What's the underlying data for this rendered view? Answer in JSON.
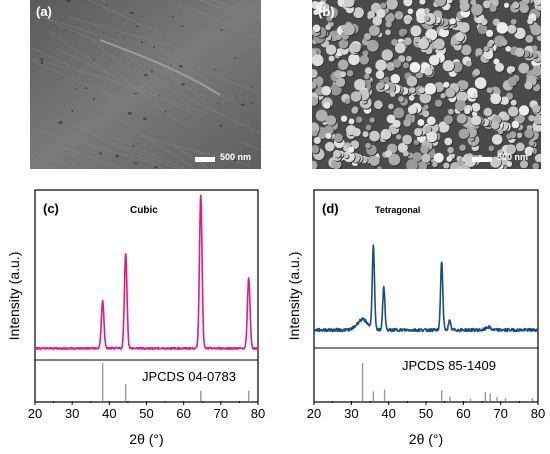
{
  "panels": {
    "a": {
      "label": "(a)",
      "scale_bar": "500 nm"
    },
    "b": {
      "label": "(b)",
      "scale_bar": "500 nm"
    },
    "c": {
      "label": "(c)",
      "phase": "Cubic",
      "reference": "JPCDS 04-0783"
    },
    "d": {
      "label": "(d)",
      "phase": "Tetragonal",
      "reference": "JPCDS 85-1409"
    }
  },
  "colors": {
    "cubic_line": "#e6197f",
    "tetragonal_line": "#1a4e7c",
    "reference_bars": "#9a9a9a"
  },
  "chart_data": [
    {
      "type": "line",
      "title": "",
      "xlabel": "2θ (°)",
      "ylabel": "Intensity (a.u.)",
      "xlim": [
        20,
        80
      ],
      "x_ticks": [
        20,
        30,
        40,
        50,
        60,
        70,
        80
      ],
      "y_ticks": "none",
      "baseline": 0.05,
      "peaks": [
        {
          "x": 38.2,
          "height": 0.31,
          "width": 0.35
        },
        {
          "x": 44.4,
          "height": 0.62,
          "width": 0.35
        },
        {
          "x": 64.6,
          "height": 1.0,
          "width": 0.35
        },
        {
          "x": 77.5,
          "height": 0.46,
          "width": 0.35
        }
      ],
      "reference_lines": [
        {
          "x": 38.2,
          "intensity": 1.0
        },
        {
          "x": 44.4,
          "intensity": 0.45
        },
        {
          "x": 64.6,
          "intensity": 0.27
        },
        {
          "x": 77.5,
          "intensity": 0.27
        }
      ]
    },
    {
      "type": "line",
      "title": "",
      "xlabel": "2θ (°)",
      "ylabel": "Intensity (a.u.)",
      "xlim": [
        20,
        80
      ],
      "x_ticks": [
        20,
        30,
        40,
        50,
        60,
        70,
        80
      ],
      "y_ticks": "none",
      "baseline": 0.1,
      "peaks": [
        {
          "x": 33.0,
          "height": 0.07,
          "width": 1.4
        },
        {
          "x": 35.9,
          "height": 0.55,
          "width": 0.3
        },
        {
          "x": 38.7,
          "height": 0.28,
          "width": 0.3
        },
        {
          "x": 54.2,
          "height": 0.46,
          "width": 0.3
        },
        {
          "x": 56.3,
          "height": 0.06,
          "width": 0.3
        },
        {
          "x": 66.7,
          "height": 0.02,
          "width": 0.6
        }
      ],
      "reference_lines": [
        {
          "x": 33.0,
          "intensity": 1.0
        },
        {
          "x": 35.9,
          "intensity": 0.25
        },
        {
          "x": 38.9,
          "intensity": 0.3
        },
        {
          "x": 54.2,
          "intensity": 0.28
        },
        {
          "x": 56.4,
          "intensity": 0.12
        },
        {
          "x": 61.9,
          "intensity": 0.06
        },
        {
          "x": 65.9,
          "intensity": 0.24
        },
        {
          "x": 67.2,
          "intensity": 0.2
        },
        {
          "x": 69.0,
          "intensity": 0.1
        },
        {
          "x": 71.3,
          "intensity": 0.08
        },
        {
          "x": 78.5,
          "intensity": 0.08
        }
      ]
    }
  ]
}
